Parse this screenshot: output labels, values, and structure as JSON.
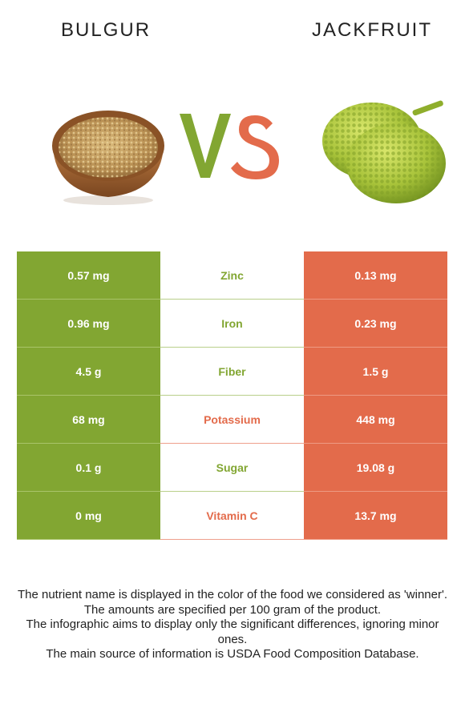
{
  "header": {
    "left_food": "BULGUR",
    "right_food": "JACKFRUIT",
    "vs_text": "VS"
  },
  "colors": {
    "bulgur": "#82a632",
    "jackfruit": "#e36b4b"
  },
  "images": {
    "left": "bulgur-bowl-image",
    "right": "jackfruit-image"
  },
  "rows": [
    {
      "left": "0.57 mg",
      "nutrient": "Zinc",
      "right": "0.13 mg",
      "winner": "bulgur"
    },
    {
      "left": "0.96 mg",
      "nutrient": "Iron",
      "right": "0.23 mg",
      "winner": "bulgur"
    },
    {
      "left": "4.5 g",
      "nutrient": "Fiber",
      "right": "1.5 g",
      "winner": "bulgur"
    },
    {
      "left": "68 mg",
      "nutrient": "Potassium",
      "right": "448 mg",
      "winner": "jackfruit"
    },
    {
      "left": "0.1 g",
      "nutrient": "Sugar",
      "right": "19.08 g",
      "winner": "bulgur"
    },
    {
      "left": "0 mg",
      "nutrient": "Vitamin C",
      "right": "13.7 mg",
      "winner": "jackfruit"
    }
  ],
  "footnotes": [
    "The nutrient name is displayed in the color of the food we considered as 'winner'.",
    "The amounts are specified per 100 gram of the product.",
    "The infographic aims to display only the significant differences, ignoring minor ones.",
    "The main source of information is USDA Food Composition Database."
  ]
}
